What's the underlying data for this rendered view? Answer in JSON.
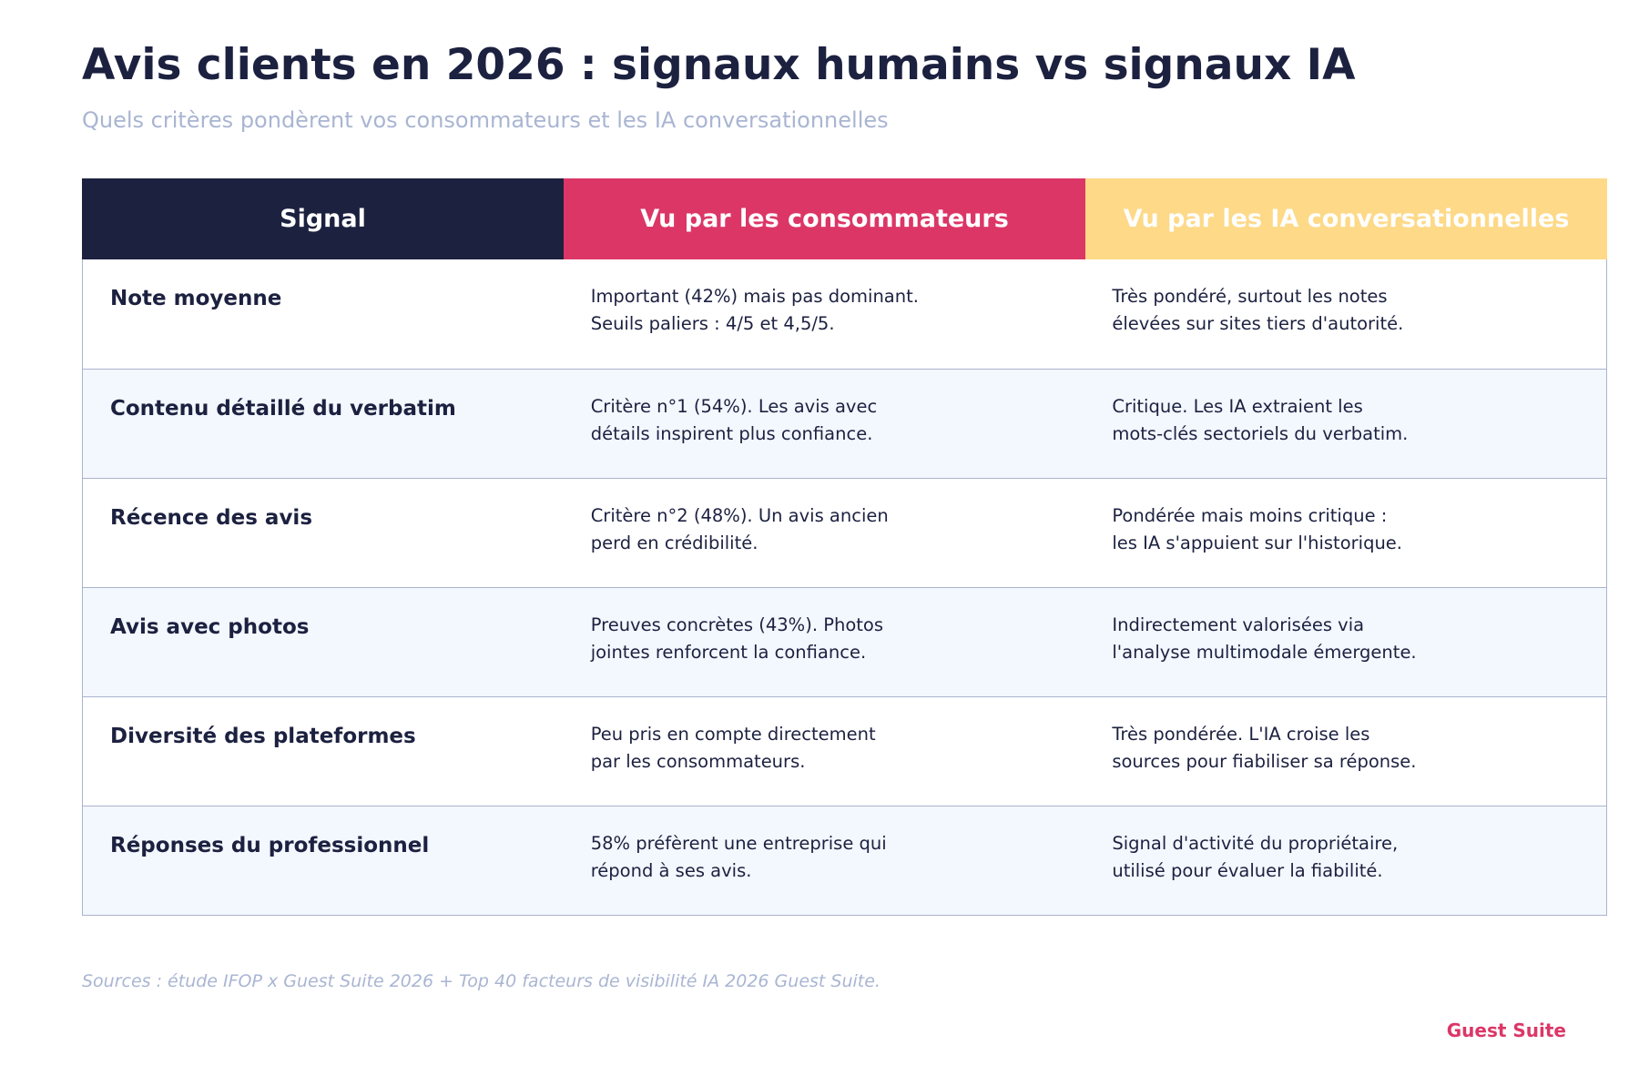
{
  "title": "Avis clients en 2026 : signaux humains vs signaux IA",
  "subtitle": "Quels critères pondèrent vos consommateurs et les IA conversationnelles",
  "colors": {
    "navy": "#1c2140",
    "pink": "#dc3667",
    "yellow": "#fdd988",
    "row_alt": "#f3f7fe",
    "border": "#aab4cf",
    "muted": "#a9b5d2"
  },
  "table": {
    "headers": [
      "Signal",
      "Vu par les consommateurs",
      "Vu par les IA conversationnelles"
    ],
    "rows": [
      {
        "signal": "Note moyenne",
        "consumers": [
          "Important (42%) mais pas dominant.",
          "Seuils paliers : 4/5 et 4,5/5."
        ],
        "ai": [
          "Très pondéré, surtout les notes",
          "élevées sur sites tiers d'autorité."
        ]
      },
      {
        "signal": "Contenu détaillé du verbatim",
        "consumers": [
          "Critère n°1 (54%). Les avis avec",
          "détails inspirent plus confiance."
        ],
        "ai": [
          "Critique. Les IA extraient les",
          "mots-clés sectoriels du verbatim."
        ]
      },
      {
        "signal": "Récence des avis",
        "consumers": [
          "Critère n°2 (48%). Un avis ancien",
          "perd en crédibilité."
        ],
        "ai": [
          "Pondérée mais moins critique :",
          "les IA s'appuient sur l'historique."
        ]
      },
      {
        "signal": "Avis avec photos",
        "consumers": [
          "Preuves concrètes (43%). Photos",
          "jointes renforcent la confiance."
        ],
        "ai": [
          "Indirectement valorisées via",
          "l'analyse multimodale émergente."
        ]
      },
      {
        "signal": "Diversité des plateformes",
        "consumers": [
          "Peu pris en compte directement",
          "par les consommateurs."
        ],
        "ai": [
          "Très pondérée. L'IA croise les",
          "sources pour fiabiliser sa réponse."
        ]
      },
      {
        "signal": "Réponses du professionnel",
        "consumers": [
          "58% préfèrent une entreprise qui",
          "répond à ses avis."
        ],
        "ai": [
          "Signal d'activité du propriétaire,",
          "utilisé pour évaluer la fiabilité."
        ]
      }
    ]
  },
  "sources": "Sources : étude IFOP x Guest Suite 2026 + Top 40 facteurs de visibilité IA 2026 Guest Suite.",
  "brand": "Guest Suite"
}
